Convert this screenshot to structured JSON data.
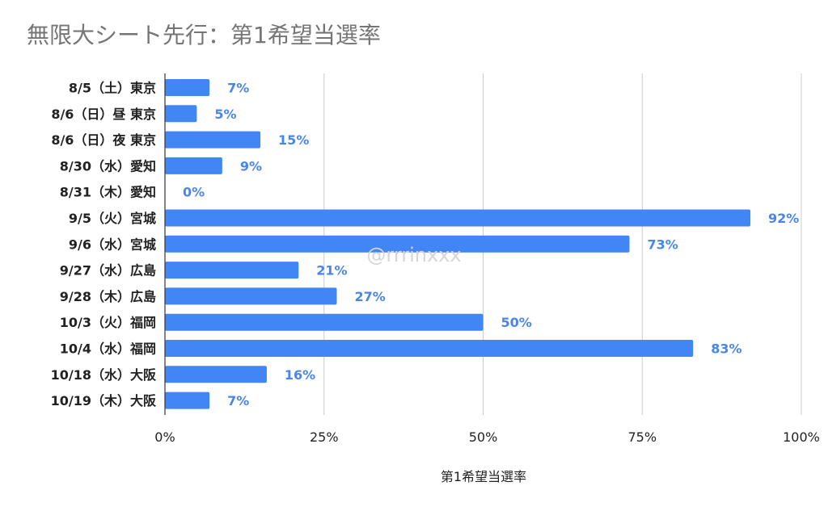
{
  "chart_data": {
    "type": "bar",
    "orientation": "horizontal",
    "title": "無限大シート先行：第1希望当選率",
    "xlabel": "第1希望当選率",
    "ylabel": "",
    "xlim": [
      0,
      100
    ],
    "ticks": [
      0,
      25,
      50,
      75,
      100
    ],
    "tick_labels": [
      "0%",
      "25%",
      "50%",
      "75%",
      "100%"
    ],
    "grid": true,
    "categories": [
      "8/5（土）東京",
      "8/6（日）昼 東京",
      "8/6（日）夜 東京",
      "8/30（水）愛知",
      "8/31（木）愛知",
      "9/5（火）宮城",
      "9/6（水）宮城",
      "9/27（水）広島",
      "9/28（木）広島",
      "10/3（火）福岡",
      "10/4（水）福岡",
      "10/18（水）大阪",
      "10/19（木）大阪"
    ],
    "values": [
      7,
      5,
      15,
      9,
      0,
      92,
      73,
      21,
      27,
      50,
      83,
      16,
      7
    ],
    "value_labels": [
      "7%",
      "5%",
      "15%",
      "9%",
      "0%",
      "92%",
      "73%",
      "21%",
      "27%",
      "50%",
      "83%",
      "16%",
      "7%"
    ],
    "bar_color": "#4285f4",
    "label_color": "#4a86e8",
    "watermark": "@rrrinxxx"
  }
}
